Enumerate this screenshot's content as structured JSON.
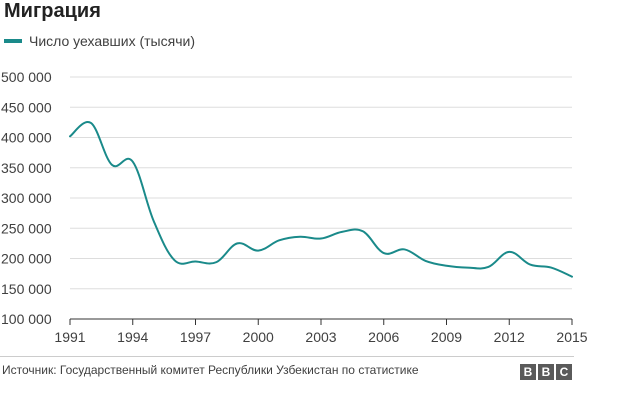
{
  "title": "Миграция",
  "legend": {
    "label": "Число уехавших (тысячи)",
    "color": "#1a8a8a"
  },
  "source": "Источник: Государственный комитет Республики Узбекистан по статистике",
  "logo": [
    "B",
    "B",
    "C"
  ],
  "chart_data": {
    "type": "line",
    "title": "Миграция",
    "xlabel": "",
    "ylabel": "",
    "xlim": [
      1991,
      2015
    ],
    "ylim": [
      100000,
      500000
    ],
    "x_ticks": [
      1991,
      1994,
      1997,
      2000,
      2003,
      2006,
      2009,
      2012,
      2015
    ],
    "x_tick_labels": [
      "1991",
      "1994",
      "1997",
      "2000",
      "2003",
      "2006",
      "2009",
      "2012",
      "2015"
    ],
    "y_ticks": [
      100000,
      150000,
      200000,
      250000,
      300000,
      350000,
      400000,
      450000,
      500000
    ],
    "y_tick_labels": [
      "100 000",
      "150 000",
      "200 000",
      "250 000",
      "300 000",
      "350 000",
      "400 000",
      "450 000",
      "500 000"
    ],
    "grid": true,
    "series": [
      {
        "name": "Число уехавших (тысячи)",
        "color": "#1a8a8a",
        "x": [
          1991,
          1992,
          1993,
          1994,
          1995,
          1996,
          1997,
          1998,
          1999,
          2000,
          2001,
          2002,
          2003,
          2004,
          2005,
          2006,
          2007,
          2008,
          2009,
          2010,
          2011,
          2012,
          2013,
          2014,
          2015
        ],
        "values": [
          402000,
          424000,
          355000,
          360000,
          262000,
          197000,
          195000,
          194000,
          225000,
          213000,
          230000,
          236000,
          233000,
          244000,
          245000,
          209000,
          215000,
          196000,
          188000,
          185000,
          186000,
          211000,
          190000,
          185000,
          170000
        ]
      }
    ]
  }
}
